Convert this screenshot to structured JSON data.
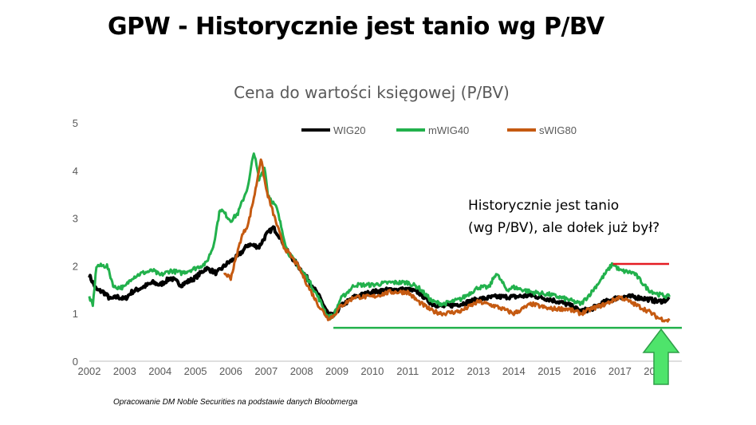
{
  "slide_title": "GPW - Historycznie jest tanio wg P/BV",
  "colors": {
    "wig20": "#000000",
    "mwig40": "#22b14c",
    "swig80": "#c55a11",
    "resistance": "#e51c23",
    "support": "#22b14c",
    "arrow_fill": "#4ee46b",
    "arrow_stroke": "#2e9e48"
  },
  "chart_data": {
    "type": "line",
    "title": "Cena do wartości księgowej (P/BV)",
    "xlabel": "",
    "ylabel": "",
    "xlim": [
      2002,
      2018.75
    ],
    "ylim": [
      0,
      5
    ],
    "yticks": [
      "0",
      "1",
      "2",
      "3",
      "4",
      "5"
    ],
    "xticks": [
      "2002",
      "2003",
      "2004",
      "2005",
      "2006",
      "2007",
      "2008",
      "2009",
      "2010",
      "2011",
      "2012",
      "2013",
      "2014",
      "2015",
      "2016",
      "2017",
      "2018"
    ],
    "legend_position": "top",
    "series": [
      {
        "name": "WIG20",
        "color": "#000000",
        "points": [
          [
            2002.0,
            1.8
          ],
          [
            2002.2,
            1.5
          ],
          [
            2002.4,
            1.45
          ],
          [
            2002.6,
            1.3
          ],
          [
            2002.8,
            1.35
          ],
          [
            2003.0,
            1.3
          ],
          [
            2003.2,
            1.45
          ],
          [
            2003.5,
            1.55
          ],
          [
            2003.8,
            1.65
          ],
          [
            2004.0,
            1.6
          ],
          [
            2004.3,
            1.75
          ],
          [
            2004.6,
            1.6
          ],
          [
            2005.0,
            1.75
          ],
          [
            2005.3,
            1.95
          ],
          [
            2005.6,
            1.85
          ],
          [
            2005.9,
            2.05
          ],
          [
            2006.2,
            2.2
          ],
          [
            2006.5,
            2.45
          ],
          [
            2006.8,
            2.4
          ],
          [
            2007.0,
            2.65
          ],
          [
            2007.2,
            2.8
          ],
          [
            2007.4,
            2.6
          ],
          [
            2007.6,
            2.3
          ],
          [
            2007.9,
            2.0
          ],
          [
            2008.2,
            1.7
          ],
          [
            2008.5,
            1.35
          ],
          [
            2008.75,
            1.0
          ],
          [
            2008.9,
            0.95
          ],
          [
            2009.1,
            1.15
          ],
          [
            2009.5,
            1.35
          ],
          [
            2010.0,
            1.45
          ],
          [
            2010.5,
            1.5
          ],
          [
            2011.0,
            1.5
          ],
          [
            2011.3,
            1.45
          ],
          [
            2011.7,
            1.2
          ],
          [
            2012.0,
            1.15
          ],
          [
            2012.5,
            1.2
          ],
          [
            2013.0,
            1.3
          ],
          [
            2013.5,
            1.35
          ],
          [
            2014.0,
            1.35
          ],
          [
            2014.5,
            1.38
          ],
          [
            2015.0,
            1.3
          ],
          [
            2015.5,
            1.2
          ],
          [
            2015.9,
            1.05
          ],
          [
            2016.2,
            1.1
          ],
          [
            2016.6,
            1.25
          ],
          [
            2017.0,
            1.35
          ],
          [
            2017.4,
            1.35
          ],
          [
            2017.8,
            1.3
          ],
          [
            2018.1,
            1.25
          ],
          [
            2018.4,
            1.3
          ]
        ]
      },
      {
        "name": "mWIG40",
        "color": "#22b14c",
        "points": [
          [
            2002.0,
            1.35
          ],
          [
            2002.1,
            1.15
          ],
          [
            2002.2,
            2.0
          ],
          [
            2002.5,
            2.0
          ],
          [
            2002.7,
            1.55
          ],
          [
            2003.0,
            1.55
          ],
          [
            2003.2,
            1.75
          ],
          [
            2003.5,
            1.85
          ],
          [
            2003.8,
            1.9
          ],
          [
            2004.0,
            1.8
          ],
          [
            2004.3,
            1.9
          ],
          [
            2004.6,
            1.85
          ],
          [
            2005.0,
            1.95
          ],
          [
            2005.3,
            2.05
          ],
          [
            2005.5,
            2.4
          ],
          [
            2005.7,
            3.2
          ],
          [
            2006.0,
            2.95
          ],
          [
            2006.2,
            3.1
          ],
          [
            2006.5,
            3.7
          ],
          [
            2006.65,
            4.4
          ],
          [
            2006.8,
            3.8
          ],
          [
            2006.95,
            4.1
          ],
          [
            2007.05,
            3.5
          ],
          [
            2007.3,
            3.2
          ],
          [
            2007.6,
            2.3
          ],
          [
            2007.9,
            2.0
          ],
          [
            2008.2,
            1.7
          ],
          [
            2008.5,
            1.3
          ],
          [
            2008.75,
            0.92
          ],
          [
            2008.9,
            0.95
          ],
          [
            2009.1,
            1.3
          ],
          [
            2009.5,
            1.6
          ],
          [
            2010.0,
            1.6
          ],
          [
            2010.5,
            1.65
          ],
          [
            2011.0,
            1.65
          ],
          [
            2011.3,
            1.55
          ],
          [
            2011.7,
            1.25
          ],
          [
            2012.0,
            1.2
          ],
          [
            2012.5,
            1.3
          ],
          [
            2013.0,
            1.55
          ],
          [
            2013.3,
            1.55
          ],
          [
            2013.5,
            1.85
          ],
          [
            2013.8,
            1.5
          ],
          [
            2014.0,
            1.55
          ],
          [
            2014.5,
            1.45
          ],
          [
            2015.0,
            1.4
          ],
          [
            2015.5,
            1.3
          ],
          [
            2015.9,
            1.2
          ],
          [
            2016.2,
            1.45
          ],
          [
            2016.5,
            1.75
          ],
          [
            2016.8,
            2.05
          ],
          [
            2017.0,
            1.9
          ],
          [
            2017.4,
            1.85
          ],
          [
            2017.8,
            1.5
          ],
          [
            2018.1,
            1.4
          ],
          [
            2018.4,
            1.35
          ]
        ]
      },
      {
        "name": "sWIG80",
        "color": "#c55a11",
        "points": [
          [
            2005.8,
            1.85
          ],
          [
            2006.0,
            1.75
          ],
          [
            2006.3,
            2.6
          ],
          [
            2006.5,
            2.9
          ],
          [
            2006.7,
            3.6
          ],
          [
            2006.85,
            4.25
          ],
          [
            2007.0,
            3.6
          ],
          [
            2007.2,
            3.1
          ],
          [
            2007.5,
            2.4
          ],
          [
            2007.9,
            2.0
          ],
          [
            2008.2,
            1.55
          ],
          [
            2008.5,
            1.15
          ],
          [
            2008.75,
            0.9
          ],
          [
            2008.9,
            0.95
          ],
          [
            2009.1,
            1.15
          ],
          [
            2009.5,
            1.35
          ],
          [
            2010.0,
            1.35
          ],
          [
            2010.5,
            1.45
          ],
          [
            2011.0,
            1.45
          ],
          [
            2011.3,
            1.25
          ],
          [
            2011.7,
            1.05
          ],
          [
            2012.0,
            1.0
          ],
          [
            2012.5,
            1.05
          ],
          [
            2013.0,
            1.25
          ],
          [
            2013.5,
            1.15
          ],
          [
            2014.0,
            1.0
          ],
          [
            2014.5,
            1.2
          ],
          [
            2015.0,
            1.1
          ],
          [
            2015.5,
            1.1
          ],
          [
            2015.9,
            1.0
          ],
          [
            2016.2,
            1.1
          ],
          [
            2016.6,
            1.2
          ],
          [
            2017.0,
            1.35
          ],
          [
            2017.4,
            1.2
          ],
          [
            2017.8,
            1.05
          ],
          [
            2018.1,
            0.9
          ],
          [
            2018.4,
            0.85
          ]
        ]
      }
    ]
  },
  "annotation": {
    "line1": "Historycznie jest tanio",
    "line2": "(wg P/BV), ale dołek już był?"
  },
  "source_note": "Opracowanie DM Noble Securities  na podstawie danych Bloobmerga",
  "support_level": {
    "value": 0.7,
    "from": 2008.9,
    "to": 2018.75
  },
  "resistance_level": {
    "value": 2.04,
    "from": 2016.8,
    "to": 2018.75
  }
}
